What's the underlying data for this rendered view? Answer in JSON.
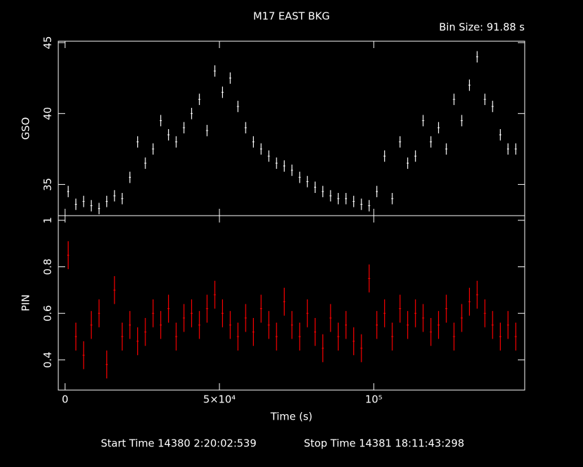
{
  "chart_data": [
    {
      "type": "scatter",
      "title": "M17 EAST BKG",
      "annotation": "Bin Size: 91.88 s",
      "y_label": "GSO",
      "x": [
        1000,
        3500,
        6000,
        8500,
        11000,
        13500,
        16000,
        18500,
        21000,
        23500,
        26000,
        28500,
        31000,
        33500,
        36000,
        38500,
        41000,
        43500,
        46000,
        48500,
        51000,
        53500,
        56000,
        58500,
        61000,
        63500,
        66000,
        68500,
        71000,
        73500,
        76000,
        78500,
        81000,
        83500,
        86000,
        88500,
        91000,
        93500,
        96000,
        98500,
        101000,
        103500,
        106000,
        108500,
        111000,
        113500,
        116000,
        118500,
        121000,
        123500,
        126000,
        128500,
        131000,
        133500,
        136000,
        138500,
        141000,
        143500,
        146000
      ],
      "series": [
        {
          "name": "GSO",
          "color": "#ffffff",
          "yerr": 0.4,
          "values": [
            34.5,
            33.6,
            33.8,
            33.5,
            33.3,
            33.8,
            34.2,
            34.0,
            35.5,
            38.0,
            36.5,
            37.5,
            39.5,
            38.5,
            38.0,
            39.0,
            40.0,
            41.0,
            38.8,
            43.0,
            41.5,
            42.5,
            40.5,
            39.0,
            38.0,
            37.5,
            37.0,
            36.5,
            36.3,
            36.0,
            35.5,
            35.2,
            34.8,
            34.5,
            34.2,
            34.0,
            34.0,
            33.8,
            33.6,
            33.5,
            34.5,
            37.0,
            34.0,
            38.0,
            36.5,
            37.0,
            39.5,
            38.0,
            39.0,
            37.5,
            41.0,
            39.5,
            42.0,
            44.0,
            41.0,
            40.5,
            38.5,
            37.5,
            37.5
          ]
        }
      ],
      "xlim": [
        -2200,
        148900
      ],
      "xticks": [
        0,
        50000,
        100000
      ],
      "ylim": [
        32.8,
        45.1
      ],
      "yticks": [
        35,
        40,
        45
      ]
    },
    {
      "type": "scatter",
      "y_label": "PIN",
      "x_label": "Time (s)",
      "footer": [
        "Start Time 14380  2:20:02:539",
        "Stop Time 14381 18:11:43:298"
      ],
      "x": [
        1000,
        3500,
        6000,
        8500,
        11000,
        13500,
        16000,
        18500,
        21000,
        23500,
        26000,
        28500,
        31000,
        33500,
        36000,
        38500,
        41000,
        43500,
        46000,
        48500,
        51000,
        53500,
        56000,
        58500,
        61000,
        63500,
        66000,
        68500,
        71000,
        73500,
        76000,
        78500,
        81000,
        83500,
        86000,
        88500,
        91000,
        93500,
        96000,
        98500,
        101000,
        103500,
        106000,
        108500,
        111000,
        113500,
        116000,
        118500,
        121000,
        123500,
        126000,
        128500,
        131000,
        133500,
        136000,
        138500,
        141000,
        143500,
        146000
      ],
      "series": [
        {
          "name": "PIN",
          "color": "#ff0000",
          "yerr": 0.06,
          "values": [
            0.85,
            0.5,
            0.42,
            0.55,
            0.6,
            0.38,
            0.7,
            0.5,
            0.55,
            0.48,
            0.52,
            0.6,
            0.55,
            0.62,
            0.5,
            0.58,
            0.6,
            0.55,
            0.62,
            0.68,
            0.6,
            0.55,
            0.5,
            0.58,
            0.52,
            0.62,
            0.55,
            0.5,
            0.65,
            0.55,
            0.5,
            0.6,
            0.52,
            0.45,
            0.58,
            0.5,
            0.55,
            0.48,
            0.45,
            0.75,
            0.55,
            0.6,
            0.5,
            0.62,
            0.55,
            0.6,
            0.58,
            0.52,
            0.55,
            0.62,
            0.5,
            0.58,
            0.65,
            0.68,
            0.6,
            0.55,
            0.5,
            0.55,
            0.5
          ]
        }
      ],
      "xlim": [
        -2200,
        148900
      ],
      "xticks": [
        0,
        {
          "value": 50000,
          "label": "5×10⁴"
        },
        {
          "value": 100000,
          "label": "10⁵"
        }
      ],
      "ylim": [
        0.27,
        1.02
      ],
      "yticks": [
        0.4,
        0.6,
        0.8,
        1
      ]
    }
  ]
}
